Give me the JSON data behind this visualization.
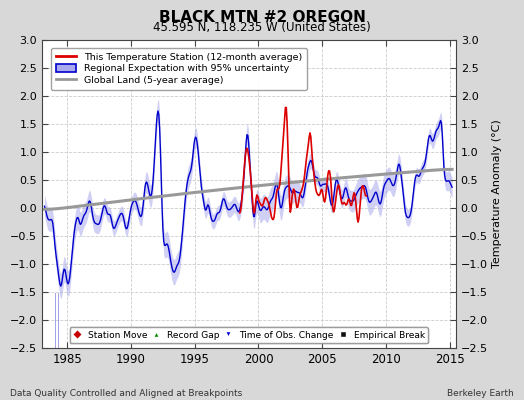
{
  "title": "BLACK MTN #2 OREGON",
  "subtitle": "45.595 N, 118.235 W (United States)",
  "ylabel": "Temperature Anomaly (°C)",
  "xlabel_left": "Data Quality Controlled and Aligned at Breakpoints",
  "xlabel_right": "Berkeley Earth",
  "xlim": [
    1983.0,
    2015.5
  ],
  "ylim": [
    -2.5,
    3.0
  ],
  "yticks": [
    -2.5,
    -2,
    -1.5,
    -1,
    -0.5,
    0,
    0.5,
    1,
    1.5,
    2,
    2.5,
    3
  ],
  "xticks": [
    1985,
    1990,
    1995,
    2000,
    2005,
    2010,
    2015
  ],
  "fig_bg_color": "#d8d8d8",
  "plot_bg_color": "#ffffff",
  "station_color": "#dd0000",
  "regional_line_color": "#0000cc",
  "regional_fill_color": "#aaaaee",
  "global_land_color": "#999999",
  "legend_items": [
    {
      "label": "This Temperature Station (12-month average)",
      "color": "#dd0000",
      "lw": 2
    },
    {
      "label": "Regional Expectation with 95% uncertainty",
      "color": "#0000cc",
      "fill": "#aaaaee"
    },
    {
      "label": "Global Land (5-year average)",
      "color": "#999999",
      "lw": 2
    }
  ],
  "marker_legend": [
    {
      "label": "Station Move",
      "color": "#cc0000",
      "marker": "D"
    },
    {
      "label": "Record Gap",
      "color": "#008800",
      "marker": "^"
    },
    {
      "label": "Time of Obs. Change",
      "color": "#0000cc",
      "marker": "v"
    },
    {
      "label": "Empirical Break",
      "color": "#111111",
      "marker": "s"
    }
  ],
  "seed": 42,
  "station_start_year": 1998.5,
  "station_end_year": 2008.5
}
